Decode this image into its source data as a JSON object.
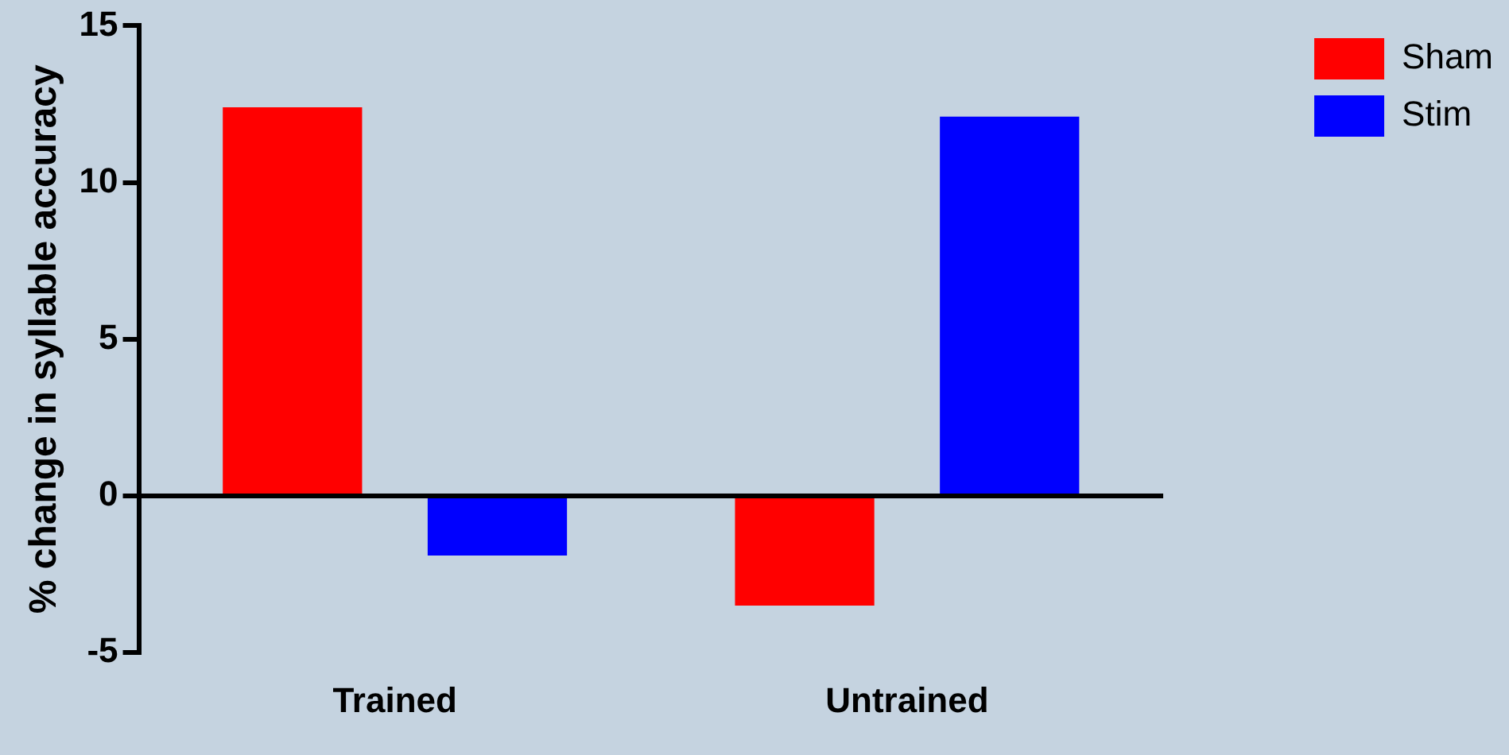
{
  "chart_data": {
    "type": "bar",
    "ylabel": "% change in syllable accuracy",
    "categories": [
      "Trained",
      "Untrained"
    ],
    "series": [
      {
        "name": "Sham",
        "color": "#ff0000",
        "values": [
          12.4,
          -3.5
        ]
      },
      {
        "name": "Stim",
        "color": "#0000ff",
        "values": [
          -1.9,
          12.1
        ]
      }
    ],
    "ylim": [
      -5,
      15
    ],
    "yticks": [
      -5,
      0,
      5,
      10,
      15
    ],
    "legend": "top right"
  }
}
